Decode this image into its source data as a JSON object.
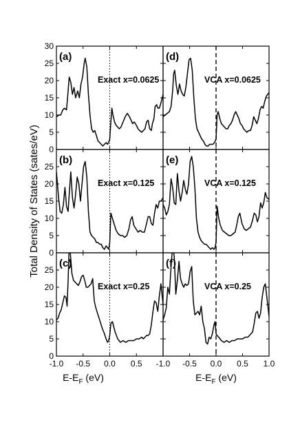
{
  "chart_data": {
    "type": "line",
    "ylabel": "Total Density of States (sates/eV)",
    "xlabel_main": "E-E",
    "xlabel_sub": "F",
    "xlabel_unit": " (eV)",
    "xlim": [
      -1.0,
      1.0
    ],
    "ylim": [
      0,
      30
    ],
    "grid": false,
    "columns_xticks": [
      [
        "-1.0",
        "-0.5",
        "0.0",
        "0.5"
      ],
      [
        "-1.0",
        "-0.5",
        "0.0",
        "0.5",
        "1.0"
      ]
    ],
    "yticks": [
      "0",
      "5",
      "10",
      "15",
      "20",
      "25",
      "30"
    ],
    "panels": [
      {
        "letter": "(a)",
        "annotation": "Exact x=0.0625",
        "fermi_line": "dotted",
        "x": [
          -1.0,
          -0.95,
          -0.92,
          -0.88,
          -0.85,
          -0.81,
          -0.78,
          -0.76,
          -0.73,
          -0.7,
          -0.67,
          -0.64,
          -0.6,
          -0.57,
          -0.54,
          -0.51,
          -0.48,
          -0.46,
          -0.43,
          -0.4,
          -0.37,
          -0.34,
          -0.31,
          -0.28,
          -0.25,
          -0.22,
          -0.19,
          -0.16,
          -0.13,
          -0.1,
          -0.07,
          -0.04,
          -0.01,
          0.0,
          0.02,
          0.04,
          0.06,
          0.09,
          0.12,
          0.15,
          0.18,
          0.21,
          0.25,
          0.29,
          0.33,
          0.37,
          0.4,
          0.43,
          0.46,
          0.5,
          0.53,
          0.56,
          0.6,
          0.63,
          0.66,
          0.69,
          0.72,
          0.75,
          0.78,
          0.8,
          0.83,
          0.85,
          0.88,
          0.9,
          0.93,
          0.96,
          1.0
        ],
        "y": [
          9.5,
          10.0,
          10.0,
          11.5,
          12.0,
          11.5,
          17.0,
          21.0,
          19.5,
          16.0,
          18.0,
          15.0,
          17.0,
          15.0,
          19.0,
          21.0,
          25.0,
          26.5,
          24.0,
          16.0,
          10.0,
          6.0,
          5.0,
          5.5,
          4.0,
          2.5,
          2.0,
          1.5,
          1.0,
          1.5,
          2.0,
          1.5,
          2.5,
          3.0,
          8.0,
          12.0,
          10.0,
          8.0,
          7.0,
          6.5,
          6.0,
          6.5,
          8.0,
          9.5,
          10.5,
          9.5,
          8.5,
          7.5,
          8.0,
          7.0,
          6.0,
          5.5,
          5.0,
          5.5,
          6.0,
          8.0,
          8.5,
          6.0,
          5.5,
          7.5,
          9.0,
          12.5,
          13.0,
          12.0,
          12.0,
          13.5,
          16.0
        ]
      },
      {
        "letter": "(b)",
        "annotation": "Exact x=0.125",
        "fermi_line": "dotted",
        "x": [
          -1.0,
          -0.98,
          -0.96,
          -0.93,
          -0.9,
          -0.87,
          -0.84,
          -0.81,
          -0.78,
          -0.76,
          -0.73,
          -0.7,
          -0.67,
          -0.64,
          -0.61,
          -0.58,
          -0.55,
          -0.52,
          -0.49,
          -0.46,
          -0.43,
          -0.4,
          -0.37,
          -0.34,
          -0.31,
          -0.28,
          -0.25,
          -0.22,
          -0.19,
          -0.16,
          -0.13,
          -0.1,
          -0.07,
          -0.04,
          -0.02,
          0.0,
          0.02,
          0.05,
          0.08,
          0.12,
          0.16,
          0.2,
          0.24,
          0.28,
          0.32,
          0.36,
          0.39,
          0.42,
          0.45,
          0.49,
          0.53,
          0.57,
          0.61,
          0.65,
          0.69,
          0.72,
          0.75,
          0.78,
          0.81,
          0.84,
          0.87,
          0.9,
          0.93,
          0.96,
          1.0
        ],
        "y": [
          23.5,
          20.0,
          16.0,
          12.0,
          11.5,
          14.0,
          19.0,
          13.5,
          12.0,
          17.0,
          23.5,
          16.0,
          13.0,
          17.0,
          22.0,
          20.0,
          15.0,
          20.0,
          25.0,
          26.5,
          22.0,
          12.0,
          6.0,
          5.0,
          4.5,
          4.0,
          3.0,
          3.0,
          2.5,
          2.5,
          1.5,
          1.0,
          2.0,
          1.5,
          1.0,
          3.0,
          11.5,
          10.0,
          8.5,
          6.5,
          5.5,
          5.0,
          5.0,
          4.5,
          5.0,
          7.0,
          9.5,
          10.5,
          8.0,
          7.0,
          6.0,
          6.5,
          6.0,
          6.0,
          8.5,
          10.5,
          10.5,
          8.5,
          8.0,
          11.5,
          14.0,
          13.0,
          15.0,
          15.0,
          16.0
        ]
      },
      {
        "letter": "(c)",
        "annotation": "Exact x=0.25",
        "fermi_line": "dotted",
        "x": [
          -1.0,
          -0.97,
          -0.94,
          -0.91,
          -0.88,
          -0.85,
          -0.82,
          -0.8,
          -0.78,
          -0.76,
          -0.74,
          -0.71,
          -0.68,
          -0.65,
          -0.62,
          -0.59,
          -0.56,
          -0.53,
          -0.5,
          -0.47,
          -0.44,
          -0.41,
          -0.38,
          -0.35,
          -0.32,
          -0.29,
          -0.26,
          -0.22,
          -0.18,
          -0.14,
          -0.1,
          -0.07,
          -0.04,
          -0.02,
          0.0,
          0.02,
          0.05,
          0.1,
          0.15,
          0.2,
          0.25,
          0.3,
          0.35,
          0.4,
          0.45,
          0.5,
          0.55,
          0.6,
          0.63,
          0.66,
          0.69,
          0.72,
          0.75,
          0.78,
          0.81,
          0.84,
          0.87,
          0.9,
          0.93,
          0.96,
          1.0
        ],
        "y": [
          10.5,
          11.0,
          12.5,
          13.5,
          15.5,
          17.5,
          17.0,
          14.5,
          22.0,
          32.0,
          30.0,
          24.0,
          22.0,
          21.5,
          21.0,
          20.5,
          21.5,
          23.0,
          23.5,
          22.0,
          20.0,
          20.0,
          20.5,
          21.0,
          22.5,
          16.0,
          14.0,
          12.0,
          10.0,
          8.0,
          6.5,
          5.0,
          4.0,
          4.5,
          6.0,
          9.5,
          10.0,
          7.0,
          5.0,
          4.0,
          4.5,
          4.0,
          4.5,
          4.5,
          4.5,
          5.0,
          5.0,
          5.5,
          5.0,
          5.5,
          6.0,
          6.0,
          6.5,
          9.0,
          13.0,
          16.0,
          15.5,
          13.0,
          17.5,
          21.0,
          15.0
        ]
      },
      {
        "letter": "(d)",
        "annotation": "VCA x=0.0625",
        "fermi_line": "dashed",
        "x": [
          -1.0,
          -0.96,
          -0.92,
          -0.88,
          -0.85,
          -0.82,
          -0.8,
          -0.78,
          -0.75,
          -0.72,
          -0.69,
          -0.66,
          -0.63,
          -0.6,
          -0.57,
          -0.54,
          -0.51,
          -0.48,
          -0.45,
          -0.42,
          -0.39,
          -0.36,
          -0.33,
          -0.3,
          -0.27,
          -0.24,
          -0.21,
          -0.18,
          -0.15,
          -0.12,
          -0.09,
          -0.06,
          -0.03,
          0.0,
          0.02,
          0.04,
          0.07,
          0.1,
          0.13,
          0.16,
          0.19,
          0.22,
          0.25,
          0.28,
          0.31,
          0.34,
          0.37,
          0.4,
          0.43,
          0.46,
          0.49,
          0.52,
          0.55,
          0.58,
          0.62,
          0.65,
          0.68,
          0.71,
          0.74,
          0.77,
          0.8,
          0.83,
          0.86,
          0.89,
          0.92,
          0.95,
          1.0
        ],
        "y": [
          9.5,
          10.0,
          10.5,
          11.0,
          12.5,
          17.0,
          22.0,
          23.0,
          18.5,
          16.0,
          19.0,
          17.0,
          16.0,
          15.5,
          18.0,
          22.0,
          26.0,
          26.5,
          23.0,
          15.0,
          9.0,
          6.0,
          5.0,
          4.0,
          3.0,
          2.5,
          1.5,
          1.0,
          1.0,
          1.5,
          1.5,
          1.5,
          2.0,
          3.0,
          10.0,
          11.0,
          9.0,
          7.5,
          7.0,
          6.5,
          6.0,
          6.0,
          7.0,
          7.5,
          8.5,
          10.0,
          11.0,
          10.0,
          9.0,
          7.5,
          7.0,
          6.0,
          5.5,
          5.0,
          5.5,
          5.5,
          7.0,
          9.5,
          8.5,
          7.5,
          9.0,
          11.5,
          12.5,
          12.0,
          14.0,
          15.5,
          16.5
        ]
      },
      {
        "letter": "(e)",
        "annotation": "VCA x=0.125",
        "fermi_line": "dashed",
        "x": [
          -1.0,
          -0.97,
          -0.94,
          -0.91,
          -0.88,
          -0.85,
          -0.82,
          -0.79,
          -0.76,
          -0.73,
          -0.7,
          -0.67,
          -0.64,
          -0.61,
          -0.58,
          -0.55,
          -0.52,
          -0.49,
          -0.46,
          -0.43,
          -0.4,
          -0.37,
          -0.34,
          -0.31,
          -0.28,
          -0.25,
          -0.22,
          -0.19,
          -0.16,
          -0.13,
          -0.1,
          -0.07,
          -0.04,
          -0.02,
          0.0,
          0.02,
          0.05,
          0.08,
          0.12,
          0.16,
          0.2,
          0.24,
          0.28,
          0.32,
          0.36,
          0.39,
          0.42,
          0.45,
          0.49,
          0.53,
          0.57,
          0.61,
          0.65,
          0.69,
          0.72,
          0.75,
          0.78,
          0.81,
          0.84,
          0.87,
          0.9,
          0.93,
          0.96,
          1.0
        ],
        "y": [
          14.0,
          13.0,
          11.0,
          12.0,
          14.0,
          21.5,
          19.0,
          14.5,
          14.0,
          23.0,
          18.0,
          15.0,
          17.5,
          21.0,
          18.5,
          17.0,
          20.0,
          26.5,
          28.0,
          25.0,
          19.0,
          10.0,
          6.0,
          4.5,
          3.5,
          3.0,
          2.5,
          2.5,
          2.0,
          1.5,
          1.0,
          1.5,
          1.0,
          1.5,
          3.0,
          13.5,
          10.0,
          8.0,
          6.5,
          6.0,
          5.5,
          5.0,
          5.0,
          5.5,
          6.0,
          8.0,
          10.5,
          11.5,
          8.5,
          7.0,
          6.5,
          7.0,
          7.5,
          9.5,
          11.5,
          11.0,
          9.0,
          10.5,
          14.5,
          13.0,
          14.5,
          17.5,
          16.0,
          15.5
        ]
      },
      {
        "letter": "(f)",
        "annotation": "VCA x=0.25",
        "fermi_line": "dashed",
        "x": [
          -1.0,
          -0.97,
          -0.94,
          -0.91,
          -0.88,
          -0.85,
          -0.82,
          -0.79,
          -0.76,
          -0.73,
          -0.7,
          -0.67,
          -0.64,
          -0.61,
          -0.58,
          -0.55,
          -0.52,
          -0.49,
          -0.46,
          -0.43,
          -0.4,
          -0.37,
          -0.34,
          -0.31,
          -0.28,
          -0.25,
          -0.22,
          -0.19,
          -0.16,
          -0.13,
          -0.1,
          -0.07,
          -0.04,
          -0.02,
          0.0,
          0.02,
          0.05,
          0.1,
          0.15,
          0.2,
          0.25,
          0.3,
          0.35,
          0.4,
          0.45,
          0.5,
          0.55,
          0.6,
          0.63,
          0.66,
          0.69,
          0.72,
          0.75,
          0.78,
          0.81,
          0.84,
          0.87,
          0.9,
          0.93,
          0.96,
          1.0
        ],
        "y": [
          10.5,
          12.0,
          14.0,
          20.0,
          18.0,
          26.0,
          32.0,
          29.0,
          18.0,
          22.0,
          27.5,
          22.5,
          21.0,
          20.0,
          21.0,
          20.5,
          21.0,
          24.5,
          26.0,
          16.0,
          12.0,
          12.5,
          13.0,
          12.0,
          14.5,
          10.0,
          8.0,
          4.0,
          3.5,
          5.5,
          5.0,
          6.5,
          9.0,
          10.0,
          6.5,
          6.0,
          5.5,
          4.5,
          4.0,
          4.5,
          4.0,
          4.5,
          4.5,
          5.0,
          5.0,
          5.0,
          5.5,
          5.5,
          6.0,
          6.5,
          7.0,
          9.5,
          12.5,
          13.0,
          11.0,
          12.5,
          17.0,
          20.0,
          21.0,
          17.0,
          11.5
        ]
      }
    ]
  }
}
